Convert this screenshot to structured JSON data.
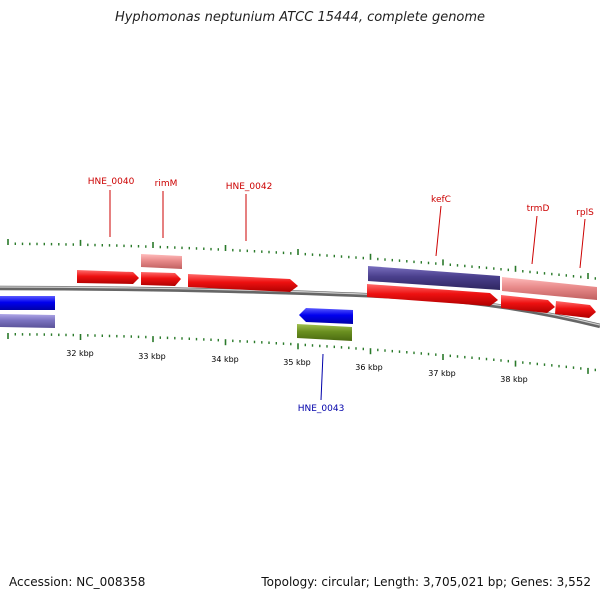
{
  "header": {
    "title": "Hyphomonas neptunium ATCC 15444, complete genome"
  },
  "footer": {
    "accession": "Accession: NC_008358",
    "summary": "Topology: circular; Length: 3,705,021 bp; Genes: 3,552"
  },
  "scale": {
    "labels": [
      "32 kbp",
      "33 kbp",
      "34 kbp",
      "35 kbp",
      "36 kbp",
      "37 kbp",
      "38 kbp"
    ]
  },
  "gene_labels": [
    {
      "name": "HNE_0040",
      "color": "#cc0000"
    },
    {
      "name": "rimM",
      "color": "#cc0000"
    },
    {
      "name": "HNE_0042",
      "color": "#cc0000"
    },
    {
      "name": "kefC",
      "color": "#cc0000"
    },
    {
      "name": "trmD",
      "color": "#cc0000"
    },
    {
      "name": "rplS",
      "color": "#cc0000"
    },
    {
      "name": "HNE_0043",
      "color": "#0000aa"
    }
  ],
  "colors": {
    "forward_gene": "#ee1111",
    "reverse_gene": "#0000ee",
    "cog_purple": "#4a3f8c",
    "cog_lightpurple": "#7b73c0",
    "cog_pink": "#e88a8a",
    "cog_green": "#6a8f20",
    "backbone": "#888888",
    "tick": "#2a7a2a"
  }
}
